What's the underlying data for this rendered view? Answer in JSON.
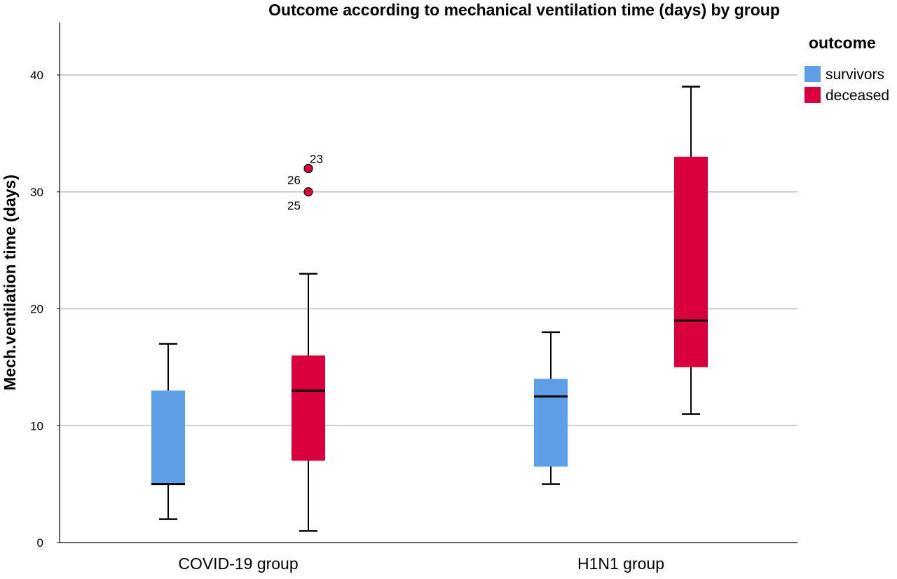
{
  "chart_data": {
    "type": "boxplot",
    "title": "Outcome according to mechanical ventilation time (days) by group",
    "xlabel": "",
    "ylabel": "Mech.ventilation time (days)",
    "ylim": [
      0,
      40
    ],
    "yticks": [
      0,
      10,
      20,
      30,
      40
    ],
    "grid": true,
    "categories": [
      "COVID-19 group",
      "H1N1 group"
    ],
    "legend": {
      "title": "outcome",
      "placement": "top-right",
      "entries": [
        "survivors",
        "deceased"
      ]
    },
    "series": [
      {
        "name": "survivors",
        "color": "#5e9ee6",
        "boxes": [
          {
            "category": "COVID-19 group",
            "whisker_low": 2,
            "q1": 5,
            "median": 5,
            "q3": 13,
            "whisker_high": 17,
            "outliers": []
          },
          {
            "category": "H1N1 group",
            "whisker_low": 5,
            "q1": 6.5,
            "median": 12.5,
            "q3": 14,
            "whisker_high": 18,
            "outliers": []
          }
        ]
      },
      {
        "name": "deceased",
        "color": "#d8003d",
        "boxes": [
          {
            "category": "COVID-19 group",
            "whisker_low": 1,
            "q1": 7,
            "median": 13,
            "q3": 16,
            "whisker_high": 23,
            "outliers": [
              {
                "value": 32,
                "labels": [
                  "23",
                  "26"
                ]
              },
              {
                "value": 30,
                "labels": [
                  "25"
                ]
              }
            ]
          },
          {
            "category": "H1N1 group",
            "whisker_low": 11,
            "q1": 15,
            "median": 19,
            "q3": 33,
            "whisker_high": 39,
            "outliers": []
          }
        ]
      }
    ]
  }
}
